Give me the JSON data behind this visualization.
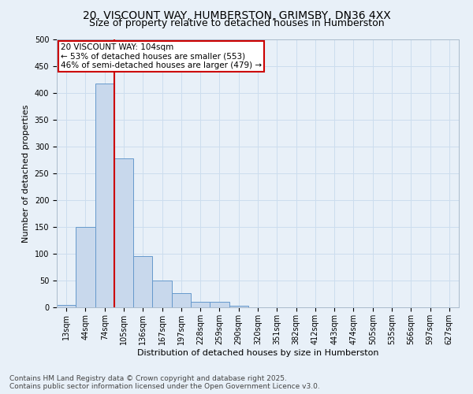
{
  "title_line1": "20, VISCOUNT WAY, HUMBERSTON, GRIMSBY, DN36 4XX",
  "title_line2": "Size of property relative to detached houses in Humberston",
  "xlabel": "Distribution of detached houses by size in Humberston",
  "ylabel": "Number of detached properties",
  "bar_color": "#c8d8ec",
  "bar_edge_color": "#6699cc",
  "categories": [
    "13sqm",
    "44sqm",
    "74sqm",
    "105sqm",
    "136sqm",
    "167sqm",
    "197sqm",
    "228sqm",
    "259sqm",
    "290sqm",
    "320sqm",
    "351sqm",
    "382sqm",
    "412sqm",
    "443sqm",
    "474sqm",
    "505sqm",
    "535sqm",
    "566sqm",
    "597sqm",
    "627sqm"
  ],
  "values": [
    5,
    150,
    418,
    278,
    95,
    50,
    27,
    10,
    10,
    3,
    0,
    0,
    0,
    0,
    0,
    0,
    0,
    0,
    0,
    0,
    0
  ],
  "annotation_box_text": "20 VISCOUNT WAY: 104sqm\n← 53% of detached houses are smaller (553)\n46% of semi-detached houses are larger (479) →",
  "annotation_box_color": "#ffffff",
  "annotation_box_edge_color": "#cc0000",
  "vline_x": 3,
  "vline_color": "#cc0000",
  "grid_color": "#ccddee",
  "background_color": "#e8f0f8",
  "footnote": "Contains HM Land Registry data © Crown copyright and database right 2025.\nContains public sector information licensed under the Open Government Licence v3.0.",
  "ylim": [
    0,
    500
  ],
  "yticks": [
    0,
    50,
    100,
    150,
    200,
    250,
    300,
    350,
    400,
    450,
    500
  ],
  "title_fontsize": 10,
  "subtitle_fontsize": 9,
  "axis_label_fontsize": 8,
  "tick_fontsize": 7,
  "annotation_fontsize": 7.5,
  "footnote_fontsize": 6.5
}
